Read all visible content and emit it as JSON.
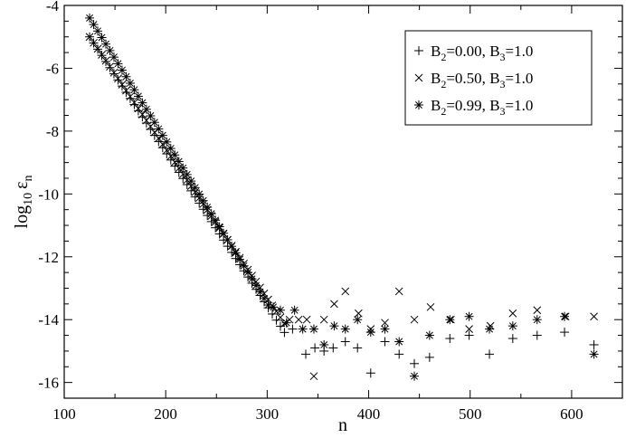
{
  "chart_data": {
    "type": "scatter",
    "title": "",
    "xlabel": "n",
    "ylabel_main": "log",
    "ylabel_sub": "10",
    "ylabel_symbol": "ε",
    "ylabel_symbol_sub": "n",
    "xlim": [
      100,
      650
    ],
    "ylim": [
      -16.5,
      -4
    ],
    "xticks": [
      100,
      200,
      300,
      400,
      500,
      600
    ],
    "xtick_labels": [
      "100",
      "200",
      "300",
      "400",
      "500",
      "600"
    ],
    "yticks": [
      -16,
      -14,
      -12,
      -10,
      -8,
      -6,
      -4
    ],
    "ytick_labels": [
      "-16",
      "-14",
      "-12",
      "-10",
      "-8",
      "-6",
      "-4"
    ],
    "grid": false,
    "legend_position": "top-right",
    "series": [
      {
        "marker": "plus",
        "legend": {
          "a": "B",
          "a_sub": "2",
          "a_val": "=0.00, ",
          "b": "B",
          "b_sub": "3",
          "b_val": "=1.0"
        },
        "linear_start": 125,
        "linear_end": 318,
        "linear_step": 4,
        "y_at_start": -5.0,
        "slope": -0.049,
        "x": [
          325,
          338,
          347,
          356,
          365,
          377,
          389,
          402,
          416,
          430,
          445,
          460,
          480,
          499,
          519,
          542,
          566,
          593,
          622
        ],
        "y": [
          -14.3,
          -15.1,
          -14.9,
          -15.0,
          -14.9,
          -14.7,
          -14.9,
          -15.7,
          -14.7,
          -15.1,
          -15.4,
          -15.2,
          -14.6,
          -14.5,
          -15.1,
          -14.6,
          -14.5,
          -14.4,
          -14.8
        ]
      },
      {
        "marker": "cross",
        "legend": {
          "a": "B",
          "a_sub": "2",
          "a_val": "=0.50, ",
          "b": "B",
          "b_sub": "3",
          "b_val": "=1.0"
        },
        "linear_start": 125,
        "linear_end": 318,
        "linear_step": 4,
        "y_at_start": -5.0,
        "slope": -0.0475,
        "x": [
          322,
          331,
          339,
          346,
          356,
          366,
          377,
          390,
          402,
          416,
          430,
          445,
          461,
          481,
          499,
          520,
          542,
          566,
          594,
          622
        ],
        "y": [
          -14.0,
          -14.0,
          -14.0,
          -15.8,
          -14.0,
          -13.5,
          -13.1,
          -13.8,
          -14.3,
          -14.1,
          -13.1,
          -14.0,
          -13.6,
          -14.0,
          -14.3,
          -14.2,
          -13.8,
          -13.7,
          -13.9,
          -13.9
        ]
      },
      {
        "marker": "asterisk",
        "legend": {
          "a": "B",
          "a_sub": "2",
          "a_val": "=0.99, ",
          "b": "B",
          "b_sub": "3",
          "b_val": "=1.0"
        },
        "linear_start": 125,
        "linear_end": 302,
        "linear_step": 4,
        "y_at_start": -4.4,
        "slope": -0.0519,
        "x": [
          306,
          313,
          319,
          327,
          335,
          346,
          356,
          366,
          377,
          389,
          402,
          416,
          430,
          445,
          460,
          480,
          499,
          519,
          542,
          566,
          593,
          622
        ],
        "y": [
          -13.6,
          -13.7,
          -14.1,
          -13.7,
          -14.3,
          -14.3,
          -14.8,
          -14.2,
          -14.3,
          -14.0,
          -14.4,
          -14.3,
          -14.7,
          -15.8,
          -14.5,
          -14.0,
          -13.9,
          -14.3,
          -14.2,
          -14.0,
          -13.9,
          -15.1
        ]
      }
    ]
  }
}
